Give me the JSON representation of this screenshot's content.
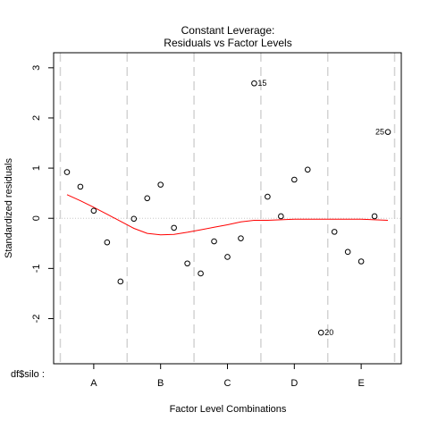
{
  "chart_data": {
    "type": "scatter",
    "title": "Constant Leverage:",
    "subtitle": "Residuals vs Factor Levels",
    "xlabel": "Factor Level Combinations",
    "ylabel": "Standardized residuals",
    "factor_label": "df$silo :",
    "ylim": [
      -2.9,
      3.3
    ],
    "yticks": [
      -2,
      -1,
      0,
      1,
      2,
      3
    ],
    "factor_levels": [
      "A",
      "B",
      "C",
      "D",
      "E"
    ],
    "x": [
      1,
      2,
      3,
      4,
      5,
      6,
      7,
      8,
      9,
      10,
      11,
      12,
      13,
      14,
      15,
      16,
      17,
      18,
      19,
      20,
      21,
      22,
      23,
      24,
      25
    ],
    "y": [
      0.92,
      0.63,
      0.15,
      -0.48,
      -1.26,
      -0.01,
      0.4,
      0.67,
      -0.19,
      -0.9,
      -1.1,
      -0.46,
      -0.77,
      -0.4,
      2.69,
      0.43,
      0.04,
      0.77,
      0.97,
      -2.28,
      -0.27,
      -0.67,
      -0.86,
      0.04,
      1.72
    ],
    "point_labels": [
      {
        "index": 15,
        "text": "15"
      },
      {
        "index": 20,
        "text": "20"
      },
      {
        "index": 25,
        "text": "25"
      }
    ],
    "smooth_line": {
      "color": "#ff0000",
      "x": [
        1,
        2,
        3,
        4,
        5,
        6,
        7,
        8,
        9,
        10,
        11,
        12,
        13,
        14,
        15,
        16,
        17,
        18,
        19,
        20,
        21,
        22,
        23,
        24,
        25
      ],
      "y": [
        0.47,
        0.35,
        0.22,
        0.08,
        -0.06,
        -0.2,
        -0.3,
        -0.33,
        -0.32,
        -0.28,
        -0.23,
        -0.18,
        -0.13,
        -0.07,
        -0.04,
        -0.04,
        -0.03,
        -0.02,
        -0.02,
        -0.02,
        -0.02,
        -0.02,
        -0.02,
        -0.03,
        -0.04
      ]
    },
    "grid": "dashed vertical separators between factor levels",
    "reference_line": {
      "y": 0,
      "style": "dotted",
      "color": "#c0c0c0"
    }
  }
}
